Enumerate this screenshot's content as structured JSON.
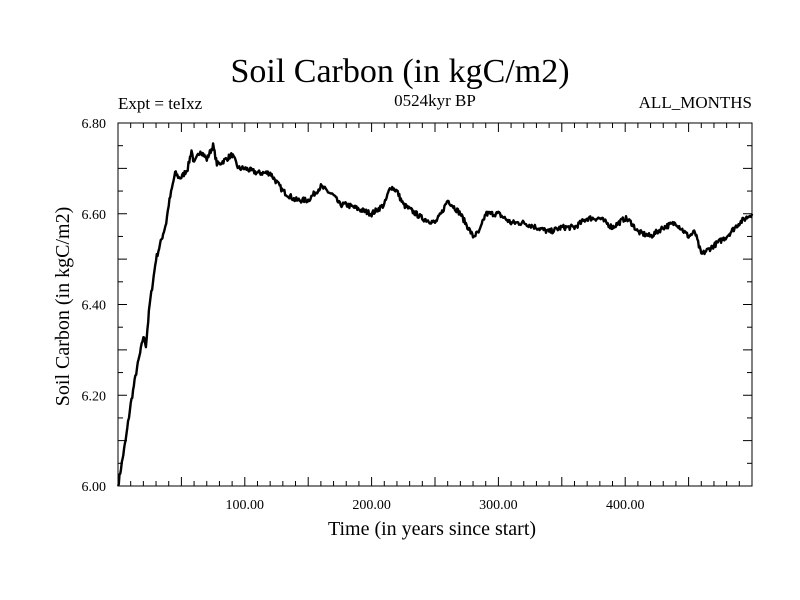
{
  "chart_data": {
    "type": "line",
    "title": "Soil Carbon (in kgC/m2)",
    "subtitle_left": "Expt = teIxz",
    "subtitle_center": "0524kyr BP",
    "subtitle_right": "ALL_MONTHS",
    "xlabel": "Time (in years since start)",
    "ylabel": "Soil Carbon (in kgC/m2)",
    "xlim": [
      0,
      500
    ],
    "ylim": [
      6.0,
      6.8
    ],
    "xticks": [
      100,
      200,
      300,
      400
    ],
    "xtick_labels": [
      "100.00",
      "200.00",
      "300.00",
      "400.00"
    ],
    "yticks": [
      6.0,
      6.2,
      6.4,
      6.6,
      6.8
    ],
    "ytick_labels": [
      "6.00",
      "6.20",
      "6.40",
      "6.60",
      "6.80"
    ],
    "grid": false,
    "series": [
      {
        "name": "Soil Carbon",
        "x": [
          0,
          3,
          6,
          10,
          15,
          18,
          20,
          22,
          25,
          30,
          35,
          38,
          40,
          45,
          48,
          50,
          55,
          58,
          60,
          65,
          70,
          75,
          78,
          80,
          85,
          90,
          95,
          100,
          110,
          120,
          130,
          140,
          150,
          160,
          170,
          175,
          180,
          190,
          200,
          210,
          215,
          220,
          225,
          230,
          240,
          250,
          255,
          260,
          270,
          280,
          285,
          290,
          300,
          310,
          320,
          330,
          340,
          350,
          360,
          370,
          380,
          390,
          400,
          405,
          410,
          420,
          430,
          440,
          450,
          455,
          460,
          470,
          480,
          490,
          500
        ],
        "values": [
          6.0,
          6.05,
          6.1,
          6.18,
          6.26,
          6.3,
          6.33,
          6.31,
          6.4,
          6.5,
          6.55,
          6.58,
          6.62,
          6.69,
          6.68,
          6.68,
          6.7,
          6.74,
          6.71,
          6.74,
          6.72,
          6.75,
          6.71,
          6.71,
          6.72,
          6.73,
          6.7,
          6.7,
          6.69,
          6.69,
          6.65,
          6.63,
          6.63,
          6.66,
          6.64,
          6.62,
          6.62,
          6.61,
          6.6,
          6.62,
          6.66,
          6.65,
          6.62,
          6.61,
          6.59,
          6.58,
          6.6,
          6.63,
          6.6,
          6.55,
          6.56,
          6.6,
          6.6,
          6.58,
          6.58,
          6.57,
          6.56,
          6.57,
          6.57,
          6.59,
          6.59,
          6.57,
          6.59,
          6.58,
          6.56,
          6.55,
          6.57,
          6.58,
          6.55,
          6.56,
          6.51,
          6.53,
          6.55,
          6.58,
          6.6
        ]
      }
    ]
  }
}
